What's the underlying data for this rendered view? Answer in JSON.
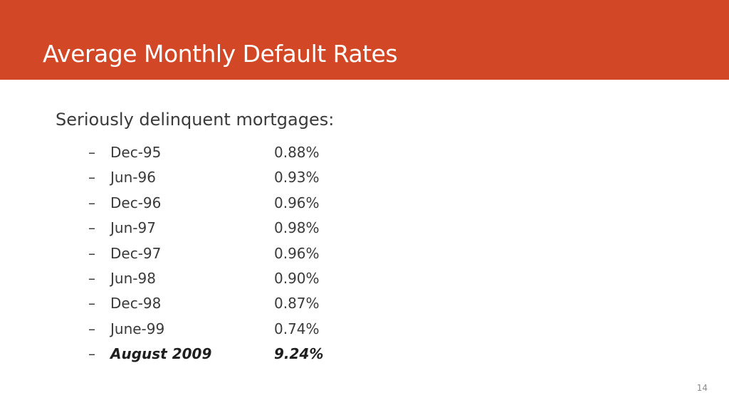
{
  "slide": {
    "title": "Average Monthly Default Rates",
    "lead": "Seriously delinquent mortgages:",
    "dash_glyph": "–",
    "rows": [
      {
        "period": "Dec-95",
        "rate": "0.88%"
      },
      {
        "period": "Jun-96",
        "rate": "0.93%"
      },
      {
        "period": "Dec-96",
        "rate": "0.96%"
      },
      {
        "period": "Jun-97",
        "rate": "0.98%"
      },
      {
        "period": "Dec-97",
        "rate": "0.96%"
      },
      {
        "period": "Jun-98",
        "rate": "0.90%"
      },
      {
        "period": "Dec-98",
        "rate": "0.87%"
      },
      {
        "period": "June-99",
        "rate": "0.74%"
      },
      {
        "period": "August 2009",
        "rate": "9.24%",
        "emphasis": true
      }
    ],
    "page_number": "14"
  },
  "theme": {
    "header_color": "#d24726",
    "text_color": "#3a3a3a"
  }
}
